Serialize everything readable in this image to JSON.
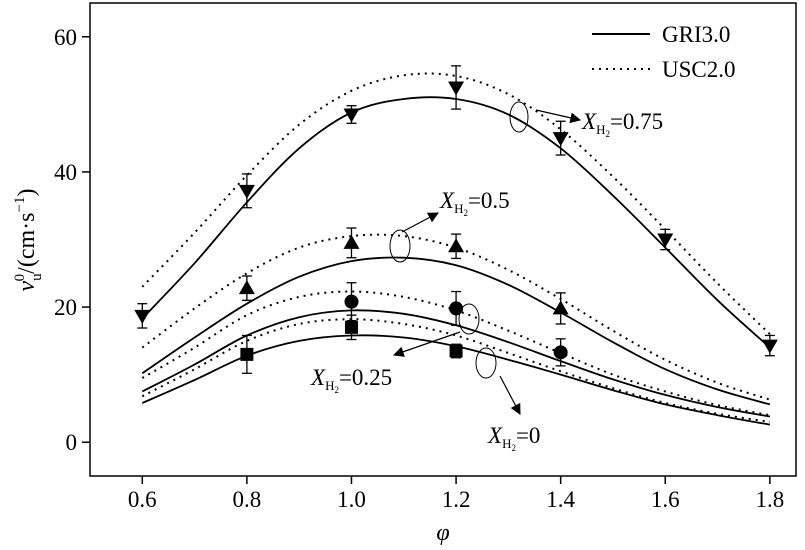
{
  "chart_data": {
    "type": "line",
    "title": "",
    "xlabel": "φ",
    "ylabel_parts": {
      "v": "v",
      "sub": "u",
      "sup": "0",
      "unit": "/(cm·s",
      "unit_sup": "−1",
      "close": ")"
    },
    "xlim": [
      0.5,
      1.85
    ],
    "ylim": [
      -5,
      65
    ],
    "xticks": [
      0.6,
      0.8,
      1.0,
      1.2,
      1.4,
      1.6,
      1.8
    ],
    "xtick_labels": [
      "0.6",
      "0.8",
      "1.0",
      "1.2",
      "1.4",
      "1.6",
      "1.8"
    ],
    "yticks": [
      0,
      20,
      40,
      60
    ],
    "ytick_labels": [
      "0",
      "20",
      "40",
      "60"
    ],
    "grid": false,
    "legend_position": "top-right",
    "legend": [
      {
        "label": "GRI3.0",
        "style": "solid"
      },
      {
        "label": "USC2.0",
        "style": "dotted"
      }
    ],
    "x": [
      0.6,
      0.7,
      0.8,
      0.9,
      1.0,
      1.1,
      1.2,
      1.3,
      1.4,
      1.5,
      1.6,
      1.7,
      1.8
    ],
    "curves": [
      {
        "group": "XH2=0.75",
        "style": "solid",
        "values": [
          18.3,
          26.5,
          35.5,
          43.5,
          48.8,
          50.8,
          50.8,
          48.5,
          43.5,
          36.5,
          28.8,
          21.0,
          14.0
        ]
      },
      {
        "group": "XH2=0.75",
        "style": "dotted",
        "values": [
          23.0,
          31.0,
          39.5,
          47.0,
          52.0,
          54.3,
          54.2,
          51.5,
          46.3,
          39.3,
          31.5,
          23.5,
          16.0
        ]
      },
      {
        "group": "XH2=0.5",
        "style": "solid",
        "values": [
          10.2,
          15.5,
          20.5,
          24.5,
          26.8,
          27.3,
          26.2,
          23.3,
          19.2,
          14.8,
          10.8,
          7.8,
          5.6
        ]
      },
      {
        "group": "XH2=0.5",
        "style": "dotted",
        "values": [
          14.0,
          19.8,
          25.0,
          28.8,
          30.5,
          30.5,
          28.8,
          25.5,
          21.2,
          16.5,
          12.2,
          8.8,
          6.3
        ]
      },
      {
        "group": "XH2=0.25",
        "style": "solid",
        "values": [
          7.5,
          11.5,
          15.8,
          18.5,
          19.5,
          19.0,
          17.3,
          14.8,
          12.0,
          9.3,
          7.0,
          5.2,
          3.8
        ]
      },
      {
        "group": "XH2=0.25",
        "style": "dotted",
        "values": [
          9.5,
          14.0,
          18.8,
          21.5,
          22.3,
          21.5,
          19.5,
          16.5,
          13.2,
          10.0,
          7.5,
          5.5,
          4.0
        ]
      },
      {
        "group": "XH2=0",
        "style": "solid",
        "values": [
          5.8,
          9.2,
          12.8,
          15.0,
          15.8,
          15.5,
          14.2,
          12.2,
          10.0,
          7.7,
          5.6,
          4.0,
          2.6
        ]
      },
      {
        "group": "XH2=0",
        "style": "dotted",
        "values": [
          6.8,
          10.8,
          15.0,
          17.5,
          18.2,
          17.5,
          15.8,
          13.2,
          10.5,
          8.0,
          5.8,
          4.2,
          3.0
        ]
      }
    ],
    "markers": [
      {
        "group": "XH2=0.75",
        "marker": "triangle-down",
        "points": [
          {
            "x": 0.6,
            "y": 18.7,
            "err": 1.8
          },
          {
            "x": 0.8,
            "y": 37.2,
            "err": 2.5
          },
          {
            "x": 1.0,
            "y": 48.5,
            "err": 1.3
          },
          {
            "x": 1.2,
            "y": 52.5,
            "err": 3.2
          },
          {
            "x": 1.4,
            "y": 45.0,
            "err": 2.5
          },
          {
            "x": 1.6,
            "y": 30.0,
            "err": 1.5
          },
          {
            "x": 1.8,
            "y": 14.3,
            "err": 1.5
          }
        ]
      },
      {
        "group": "XH2=0.5",
        "marker": "triangle-up",
        "points": [
          {
            "x": 0.8,
            "y": 22.8,
            "err": 1.8
          },
          {
            "x": 1.0,
            "y": 29.5,
            "err": 2.2
          },
          {
            "x": 1.2,
            "y": 29.0,
            "err": 1.8
          },
          {
            "x": 1.4,
            "y": 19.8,
            "err": 2.3
          }
        ]
      },
      {
        "group": "XH2=0.25",
        "marker": "circle",
        "points": [
          {
            "x": 1.0,
            "y": 20.8,
            "err": 2.8
          },
          {
            "x": 1.2,
            "y": 19.8,
            "err": 2.5
          },
          {
            "x": 1.4,
            "y": 13.3,
            "err": 2.0
          }
        ]
      },
      {
        "group": "XH2=0",
        "marker": "square",
        "points": [
          {
            "x": 0.8,
            "y": 13.0,
            "err": 2.8
          },
          {
            "x": 1.0,
            "y": 17.0,
            "err": 1.8
          },
          {
            "x": 1.2,
            "y": 13.5,
            "err": 1.0
          }
        ]
      }
    ],
    "annotations": [
      {
        "group": "XH2=0.75",
        "var": "X",
        "sub": "H",
        "subsub": "2",
        "value": "=0.75"
      },
      {
        "group": "XH2=0.5",
        "var": "X",
        "sub": "H",
        "subsub": "2",
        "value": "=0.5"
      },
      {
        "group": "XH2=0.25",
        "var": "X",
        "sub": "H",
        "subsub": "2",
        "value": "=0.25"
      },
      {
        "group": "XH2=0",
        "var": "X",
        "sub": "H",
        "subsub": "2",
        "value": "=0"
      }
    ]
  }
}
